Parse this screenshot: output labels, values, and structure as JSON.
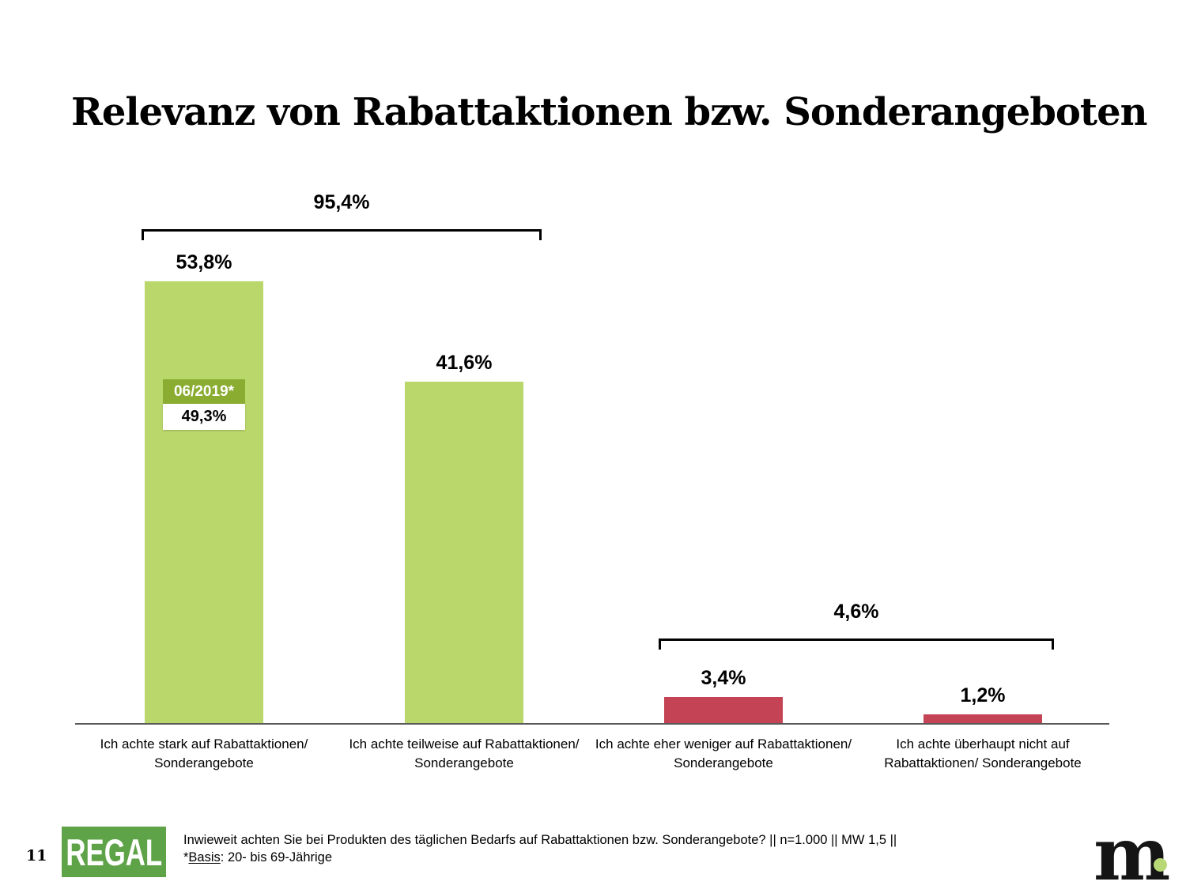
{
  "slide": {
    "title": "Relevanz von Rabattaktionen bzw. Sonderangeboten",
    "page_number": "11"
  },
  "chart_data": {
    "type": "bar",
    "title": "Relevanz von Rabattaktionen bzw. Sonderangeboten",
    "categories": [
      "Ich achte stark auf Rabattaktionen/ Sonderangebote",
      "Ich achte teilweise auf Rabattaktionen/ Sonderangebote",
      "Ich achte eher weniger auf Rabattaktionen/ Sonderangebote",
      "Ich achte überhaupt nicht auf Rabattaktionen/ Sonderangebote"
    ],
    "values": [
      53.8,
      41.6,
      3.4,
      1.2
    ],
    "value_labels": [
      "53,8%",
      "41,6%",
      "3,4%",
      "1,2%"
    ],
    "bar_colors": [
      "#b9d76b",
      "#b9d76b",
      "#c44455",
      "#c44455"
    ],
    "unit": "%",
    "ylim": [
      0,
      60
    ],
    "grid": false,
    "axes": "baseline-only",
    "legend_position": "none",
    "group_brackets": [
      {
        "label": "95,4%",
        "from_bar": 0,
        "to_bar": 1
      },
      {
        "label": "4,6%",
        "from_bar": 2,
        "to_bar": 3
      }
    ],
    "annotation": {
      "bar_index": 0,
      "series_label": "06/2019*",
      "series_label_bg": "#8aac30",
      "value_label": "49,3%",
      "value_label_bg": "#ffffff"
    }
  },
  "footer": {
    "source_line": "Inwieweit achten Sie bei Produkten des täglichen Bedarfs auf Rabattaktionen bzw. Sonderangebote? || n=1.000 || MW 1,5 ||",
    "basis_prefix": "*",
    "basis_underlined": "Basis",
    "basis_rest": ": 20- bis 69-Jährige",
    "regal_logo_text": "REGAL",
    "regal_logo_color": "#5fa348",
    "m_logo_text": "m",
    "m_logo_dot_color": "#b8d878"
  },
  "colors": {
    "bar_green": "#b9d76b",
    "bar_red": "#c44455",
    "badge_green": "#8aac30",
    "axis_line": "#595959",
    "bracket": "#000000"
  }
}
